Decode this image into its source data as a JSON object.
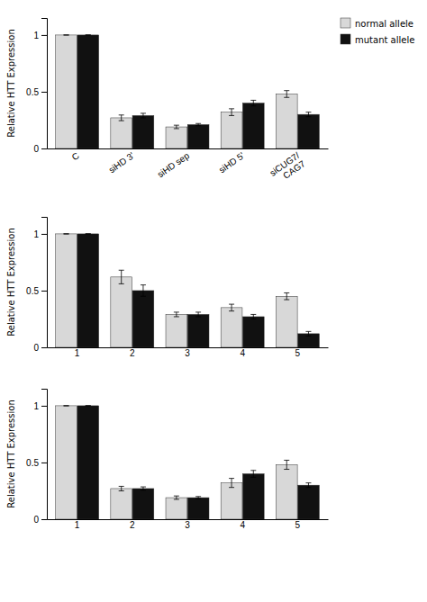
{
  "chart_data": [
    {
      "type": "bar",
      "ylabel": "Relative HTT Expression",
      "categories": [
        "C",
        "siHD 3'",
        "siHD sep",
        "siHD 5'",
        "siCUG7/\nCAG7"
      ],
      "series": [
        {
          "name": "normal allele",
          "color": "#d8d8d8",
          "values": [
            1.0,
            0.27,
            0.19,
            0.32,
            0.48
          ],
          "errors": [
            0.0,
            0.025,
            0.015,
            0.03,
            0.03
          ]
        },
        {
          "name": "mutant allele",
          "color": "#111111",
          "values": [
            1.0,
            0.29,
            0.21,
            0.4,
            0.3
          ],
          "errors": [
            0.0,
            0.02,
            0.01,
            0.025,
            0.02
          ]
        }
      ],
      "ylim": [
        0,
        1.15
      ],
      "yticks": [
        0,
        0.5,
        1
      ],
      "legend": "upper right"
    },
    {
      "type": "bar",
      "ylabel": "Relative HTT Expression",
      "categories": [
        "1",
        "2",
        "3",
        "4",
        "5"
      ],
      "series": [
        {
          "color": "#d8d8d8",
          "values": [
            1.0,
            0.62,
            0.29,
            0.35,
            0.45
          ],
          "errors": [
            0.0,
            0.06,
            0.02,
            0.03,
            0.03
          ]
        },
        {
          "color": "#111111",
          "values": [
            1.0,
            0.5,
            0.29,
            0.27,
            0.12
          ],
          "errors": [
            0.0,
            0.05,
            0.02,
            0.02,
            0.02
          ]
        }
      ],
      "ylim": [
        0,
        1.15
      ],
      "yticks": [
        0,
        0.5,
        1
      ]
    },
    {
      "type": "bar",
      "ylabel": "Relative HTT Expression",
      "categories": [
        "1",
        "2",
        "3",
        "4",
        "5"
      ],
      "series": [
        {
          "color": "#d8d8d8",
          "values": [
            1.0,
            0.27,
            0.19,
            0.32,
            0.48
          ],
          "errors": [
            0.0,
            0.02,
            0.015,
            0.04,
            0.04
          ]
        },
        {
          "color": "#111111",
          "values": [
            1.0,
            0.27,
            0.19,
            0.4,
            0.3
          ],
          "errors": [
            0.0,
            0.015,
            0.01,
            0.03,
            0.02
          ]
        }
      ],
      "ylim": [
        0,
        1.15
      ],
      "yticks": [
        0,
        0.5,
        1
      ]
    }
  ]
}
